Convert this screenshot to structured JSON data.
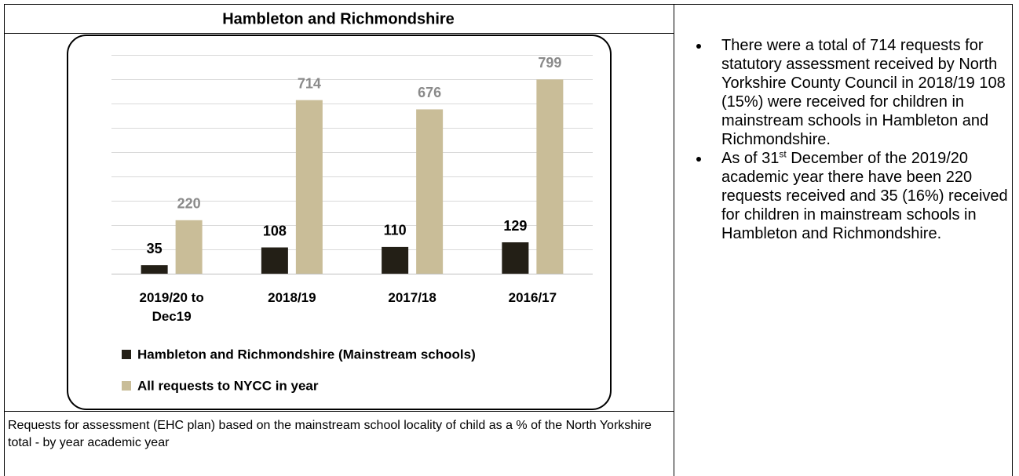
{
  "title": "Hambleton and Richmondshire",
  "chart_data": {
    "type": "bar",
    "categories": [
      "2019/20 to Dec19",
      "2018/19",
      "2017/18",
      "2016/17"
    ],
    "series": [
      {
        "name": "Hambleton and Richmondshire (Mainstream schools)",
        "color": "#231f16",
        "label_color": "#000000",
        "values": [
          35,
          108,
          110,
          129
        ]
      },
      {
        "name": "All requests to NYCC in year",
        "color": "#c9bd98",
        "label_color": "#8a8a8a",
        "values": [
          220,
          714,
          676,
          799
        ]
      }
    ],
    "ylim": [
      0,
      900
    ],
    "yticks": [
      0,
      100,
      200,
      300,
      400,
      500,
      600,
      700,
      800,
      900
    ],
    "grid": true,
    "legend": "bottom"
  },
  "caption": "Requests for assessment (EHC plan) based on the mainstream school locality of child as a % of the North Yorkshire total - by year academic year",
  "bullets": [
    {
      "text": "There were a total of 714 requests for statutory assessment received by North Yorkshire County Council in 2018/19 108 (15%) were received for children in mainstream schools in Hambleton and Richmondshire."
    },
    {
      "text": "As of 31",
      "sup": "st",
      "rest": " December of the 2019/20 academic year there have been 220 requests received and 35 (16%) received for children in mainstream schools in Hambleton and Richmondshire."
    }
  ]
}
